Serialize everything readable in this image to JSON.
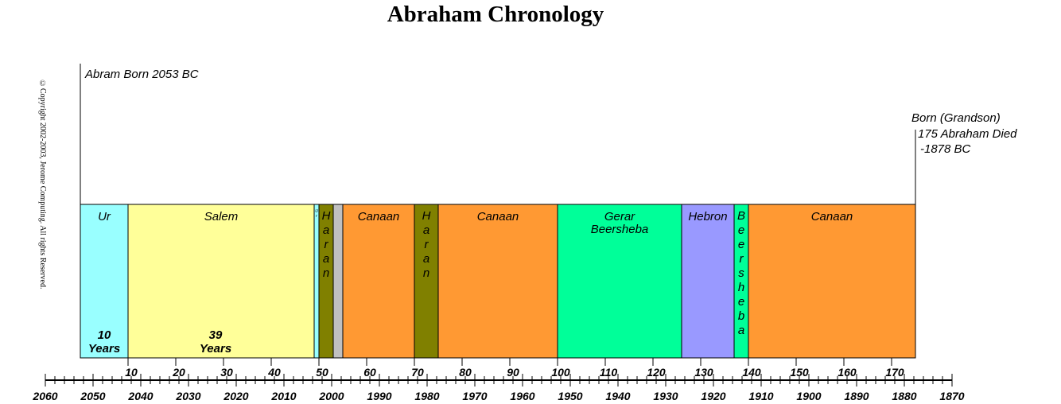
{
  "title": "Abraham Chronology",
  "copyright": "©Copyright 2002-2003, Jerome Computing. All rights Reserved.",
  "notes": {
    "birth": "Abram Born 2053 BC",
    "grandson": "Born (Grandson)",
    "death_line1": "175 Abraham Died",
    "death_line2": "-1878 BC"
  },
  "timeline": {
    "start_age": 0,
    "end_age": 175,
    "birth_year_bc": 2053,
    "death_year_bc": 1878
  },
  "segments": [
    {
      "label": "Ur",
      "start": 0,
      "end": 10,
      "color": "#99ffff",
      "orientation": "horizontal",
      "duration": [
        "10",
        "Years"
      ]
    },
    {
      "label": "Salem",
      "start": 10,
      "end": 49,
      "color": "#ffff99",
      "orientation": "horizontal",
      "duration": [
        "39",
        "Years"
      ]
    },
    {
      "label": "Ur",
      "start": 49,
      "end": 50,
      "color": "#99ffff",
      "orientation": "tiny"
    },
    {
      "label": "Haran",
      "start": 50,
      "end": 53,
      "color": "#808000",
      "orientation": "vertical"
    },
    {
      "label": "",
      "start": 53,
      "end": 55,
      "color": "#c0c0c0",
      "orientation": "horizontal"
    },
    {
      "label": "Canaan",
      "start": 55,
      "end": 70,
      "color": "#ff9933",
      "orientation": "horizontal"
    },
    {
      "label": "Haran",
      "start": 70,
      "end": 75,
      "color": "#808000",
      "orientation": "vertical"
    },
    {
      "label": "Canaan",
      "start": 75,
      "end": 100,
      "color": "#ff9933",
      "orientation": "horizontal"
    },
    {
      "label": "Gerar Beersheba",
      "start": 100,
      "end": 126,
      "color": "#00ff99",
      "orientation": "horizontal"
    },
    {
      "label": "Hebron",
      "start": 126,
      "end": 137,
      "color": "#9999ff",
      "orientation": "horizontal"
    },
    {
      "label": "Beersheba",
      "start": 137,
      "end": 140,
      "color": "#00ff99",
      "orientation": "vertical"
    },
    {
      "label": "Canaan",
      "start": 140,
      "end": 175,
      "color": "#ff9933",
      "orientation": "horizontal"
    }
  ],
  "age_ticks": [
    10,
    20,
    30,
    40,
    50,
    60,
    70,
    80,
    90,
    100,
    110,
    120,
    130,
    140,
    150,
    160,
    170
  ],
  "year_ticks": [
    2060,
    2050,
    2040,
    2030,
    2020,
    2010,
    2000,
    1990,
    1980,
    1970,
    1960,
    1950,
    1940,
    1930,
    1920,
    1910,
    1900,
    1890,
    1880,
    1870
  ],
  "colors": {
    "border": "#000000",
    "background": "#ffffff"
  }
}
